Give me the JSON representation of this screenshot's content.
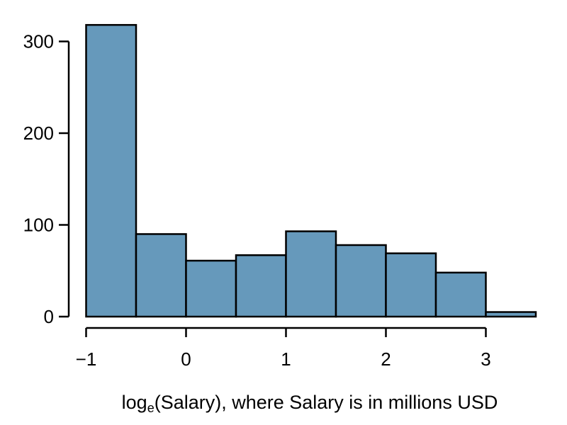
{
  "chart_data": {
    "type": "bar",
    "subtype": "histogram",
    "title": "",
    "xlabel": {
      "before": "log",
      "subscript": "e",
      "after": "(Salary), where Salary is in millions USD"
    },
    "ylabel": "",
    "bin_width": 0.5,
    "bins": [
      {
        "start": -1.0,
        "end": -0.5,
        "count": 318
      },
      {
        "start": -0.5,
        "end": 0.0,
        "count": 90
      },
      {
        "start": 0.0,
        "end": 0.5,
        "count": 61
      },
      {
        "start": 0.5,
        "end": 1.0,
        "count": 67
      },
      {
        "start": 1.0,
        "end": 1.5,
        "count": 93
      },
      {
        "start": 1.5,
        "end": 2.0,
        "count": 78
      },
      {
        "start": 2.0,
        "end": 2.5,
        "count": 69
      },
      {
        "start": 2.5,
        "end": 3.0,
        "count": 48
      },
      {
        "start": 3.0,
        "end": 3.5,
        "count": 5
      }
    ],
    "x_ticks": [
      {
        "value": -1,
        "label": "−1"
      },
      {
        "value": 0,
        "label": "0"
      },
      {
        "value": 1,
        "label": "1"
      },
      {
        "value": 2,
        "label": "2"
      },
      {
        "value": 3,
        "label": "3"
      }
    ],
    "y_ticks": [
      {
        "value": 0,
        "label": "0"
      },
      {
        "value": 100,
        "label": "100"
      },
      {
        "value": 200,
        "label": "200"
      },
      {
        "value": 300,
        "label": "300"
      }
    ],
    "xlim": [
      -1.0,
      3.5
    ],
    "ylim": [
      0,
      318
    ],
    "grid": false,
    "legend": "none",
    "bar_color": "#6699bb",
    "edge_color": "#000000"
  }
}
